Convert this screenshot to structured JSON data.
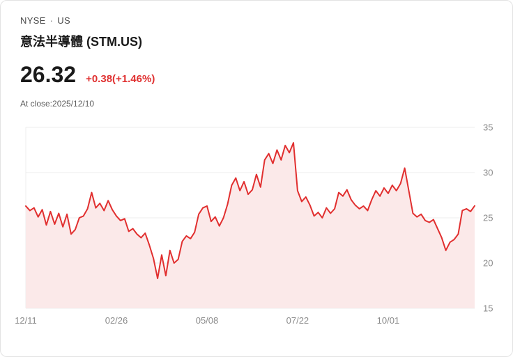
{
  "header": {
    "exchange": "NYSE",
    "separator": "·",
    "market": "US",
    "title": "意法半導體 (STM.US)",
    "price": "26.32",
    "change": "+0.38(+1.46%)",
    "close_info": "At close:2025/12/10"
  },
  "colors": {
    "line": "#e12f2f",
    "fill": "#fbe9e9",
    "change_text": "#e03131",
    "grid": "#ececec",
    "axis_text": "#8a8a8a"
  },
  "chart_data": {
    "type": "area",
    "ylim": [
      15,
      35
    ],
    "yticks": [
      15,
      20,
      25,
      30,
      35
    ],
    "grid": "horizontal",
    "legend": false,
    "x_labels": [
      "12/11",
      "02/26",
      "05/08",
      "07/22",
      "10/01"
    ],
    "x_label_indices": [
      0,
      22,
      44,
      66,
      88
    ],
    "values": [
      26.3,
      25.8,
      26.1,
      25.1,
      25.9,
      24.2,
      25.7,
      24.3,
      25.5,
      24.0,
      25.4,
      23.2,
      23.7,
      25.0,
      25.2,
      26.0,
      27.8,
      26.1,
      26.6,
      25.8,
      26.9,
      25.9,
      25.2,
      24.7,
      24.9,
      23.5,
      23.8,
      23.2,
      22.8,
      23.3,
      22.0,
      20.5,
      18.3,
      20.9,
      18.6,
      21.4,
      20.0,
      20.4,
      22.4,
      23.0,
      22.7,
      23.4,
      25.4,
      26.1,
      26.3,
      24.6,
      25.1,
      24.1,
      25.0,
      26.5,
      28.6,
      29.4,
      28.0,
      29.0,
      27.6,
      28.1,
      29.8,
      28.4,
      31.4,
      32.1,
      31.0,
      32.5,
      31.4,
      33.0,
      32.2,
      33.3,
      28.0,
      26.8,
      27.3,
      26.4,
      25.2,
      25.6,
      25.0,
      26.1,
      25.5,
      26.0,
      27.8,
      27.4,
      28.1,
      27.0,
      26.4,
      26.0,
      26.3,
      25.8,
      27.0,
      28.0,
      27.4,
      28.3,
      27.7,
      28.6,
      28.0,
      28.8,
      30.5,
      28.0,
      25.5,
      25.1,
      25.4,
      24.7,
      24.5,
      24.8,
      23.8,
      22.8,
      21.4,
      22.3,
      22.6,
      23.2,
      25.8,
      26.0,
      25.7,
      26.32
    ]
  }
}
